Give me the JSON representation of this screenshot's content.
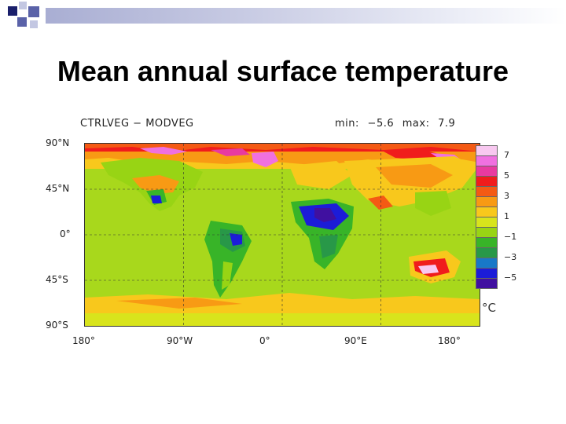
{
  "slide": {
    "title": "Mean annual surface temperature"
  },
  "map": {
    "experiment_label": "CTRLVEG − MODVEG",
    "min_label": "min:",
    "min_value": "−5.6",
    "max_label": "max:",
    "max_value": "7.9",
    "lat_ticks": [
      "90°N",
      "45°N",
      "0°",
      "45°S",
      "90°S"
    ],
    "lon_ticks": [
      "180°",
      "90°W",
      "0°",
      "90°E",
      "180°"
    ],
    "legend": {
      "unit": "°C",
      "colors": [
        "#f8c8f0",
        "#f070e0",
        "#e83aa0",
        "#f01c1c",
        "#f45a14",
        "#f89a14",
        "#f8c81c",
        "#d8e41c",
        "#98d414",
        "#38b428",
        "#289848",
        "#1878c8",
        "#1c1cd8",
        "#4010a0"
      ],
      "labels": [
        "7",
        "5",
        "3",
        "1",
        "−1",
        "−3",
        "−5"
      ]
    },
    "colors": {
      "ocean_base": "#a8d81c",
      "warm_strong": "#f01c1c",
      "warm": "#f89a14",
      "cool": "#38b428",
      "cold": "#1c1cd8"
    }
  }
}
